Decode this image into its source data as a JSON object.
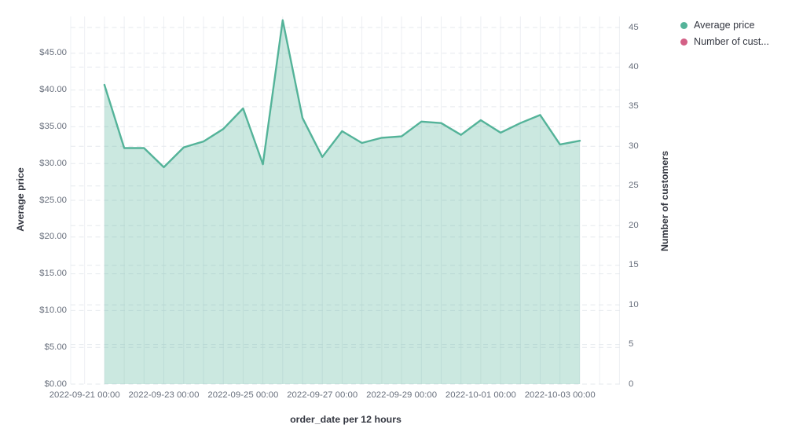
{
  "chart_data": {
    "type": "area",
    "title": "",
    "xlabel": "order_date per 12 hours",
    "ylabel_left": "Average price",
    "ylabel_right": "Number of customers",
    "legend_position": "top-right",
    "grid": true,
    "x_interval": "12 hours",
    "x": [
      "2022-09-21 12:00",
      "2022-09-22 00:00",
      "2022-09-22 12:00",
      "2022-09-23 00:00",
      "2022-09-23 12:00",
      "2022-09-24 00:00",
      "2022-09-24 12:00",
      "2022-09-25 00:00",
      "2022-09-25 12:00",
      "2022-09-26 00:00",
      "2022-09-26 12:00",
      "2022-09-27 00:00",
      "2022-09-27 12:00",
      "2022-09-28 00:00",
      "2022-09-28 12:00",
      "2022-09-29 00:00",
      "2022-09-29 12:00",
      "2022-09-30 00:00",
      "2022-09-30 12:00",
      "2022-10-01 00:00",
      "2022-10-01 12:00",
      "2022-10-02 00:00",
      "2022-10-02 12:00",
      "2022-10-03 00:00",
      "2022-10-03 12:00"
    ],
    "series": [
      {
        "name": "Average price",
        "axis": "left",
        "color": "#54b399",
        "values": [
          40.7,
          32.1,
          32.1,
          29.5,
          32.2,
          33.0,
          34.7,
          37.5,
          29.9,
          49.5,
          36.2,
          30.9,
          34.4,
          32.8,
          33.5,
          33.7,
          35.7,
          35.5,
          33.9,
          35.9,
          34.2,
          35.5,
          36.6,
          32.6,
          33.1
        ]
      },
      {
        "name": "Number of customers",
        "axis": "right",
        "color": "#d36086",
        "values": []
      }
    ],
    "legend": [
      {
        "label": "Average price",
        "color": "#54b399"
      },
      {
        "label": "Number of cust...",
        "color": "#d36086"
      }
    ],
    "y_left": {
      "range": [
        0,
        50
      ],
      "tick_values": [
        0,
        5,
        10,
        15,
        20,
        25,
        30,
        35,
        40,
        45
      ],
      "tick_labels": [
        "$0.00",
        "$5.00",
        "$10.00",
        "$15.00",
        "$20.00",
        "$25.00",
        "$30.00",
        "$35.00",
        "$40.00",
        "$45.00"
      ]
    },
    "y_right": {
      "range": [
        0,
        46.5
      ],
      "tick_values": [
        0,
        5,
        10,
        15,
        20,
        25,
        30,
        35,
        40,
        45
      ],
      "tick_labels": [
        "0",
        "5",
        "10",
        "15",
        "20",
        "25",
        "30",
        "35",
        "40",
        "45"
      ]
    },
    "x_tick_labels": [
      "2022-09-21 00:00",
      "2022-09-23 00:00",
      "2022-09-25 00:00",
      "2022-09-27 00:00",
      "2022-09-29 00:00",
      "2022-10-01 00:00",
      "2022-10-03 00:00"
    ]
  },
  "colors": {
    "series_green": "#54b399",
    "series_pink": "#d36086",
    "tick_text": "#69707d",
    "title_text": "#343741",
    "grid_vertical": "#edeff3",
    "grid_horizontal": "#e5e9ee"
  }
}
